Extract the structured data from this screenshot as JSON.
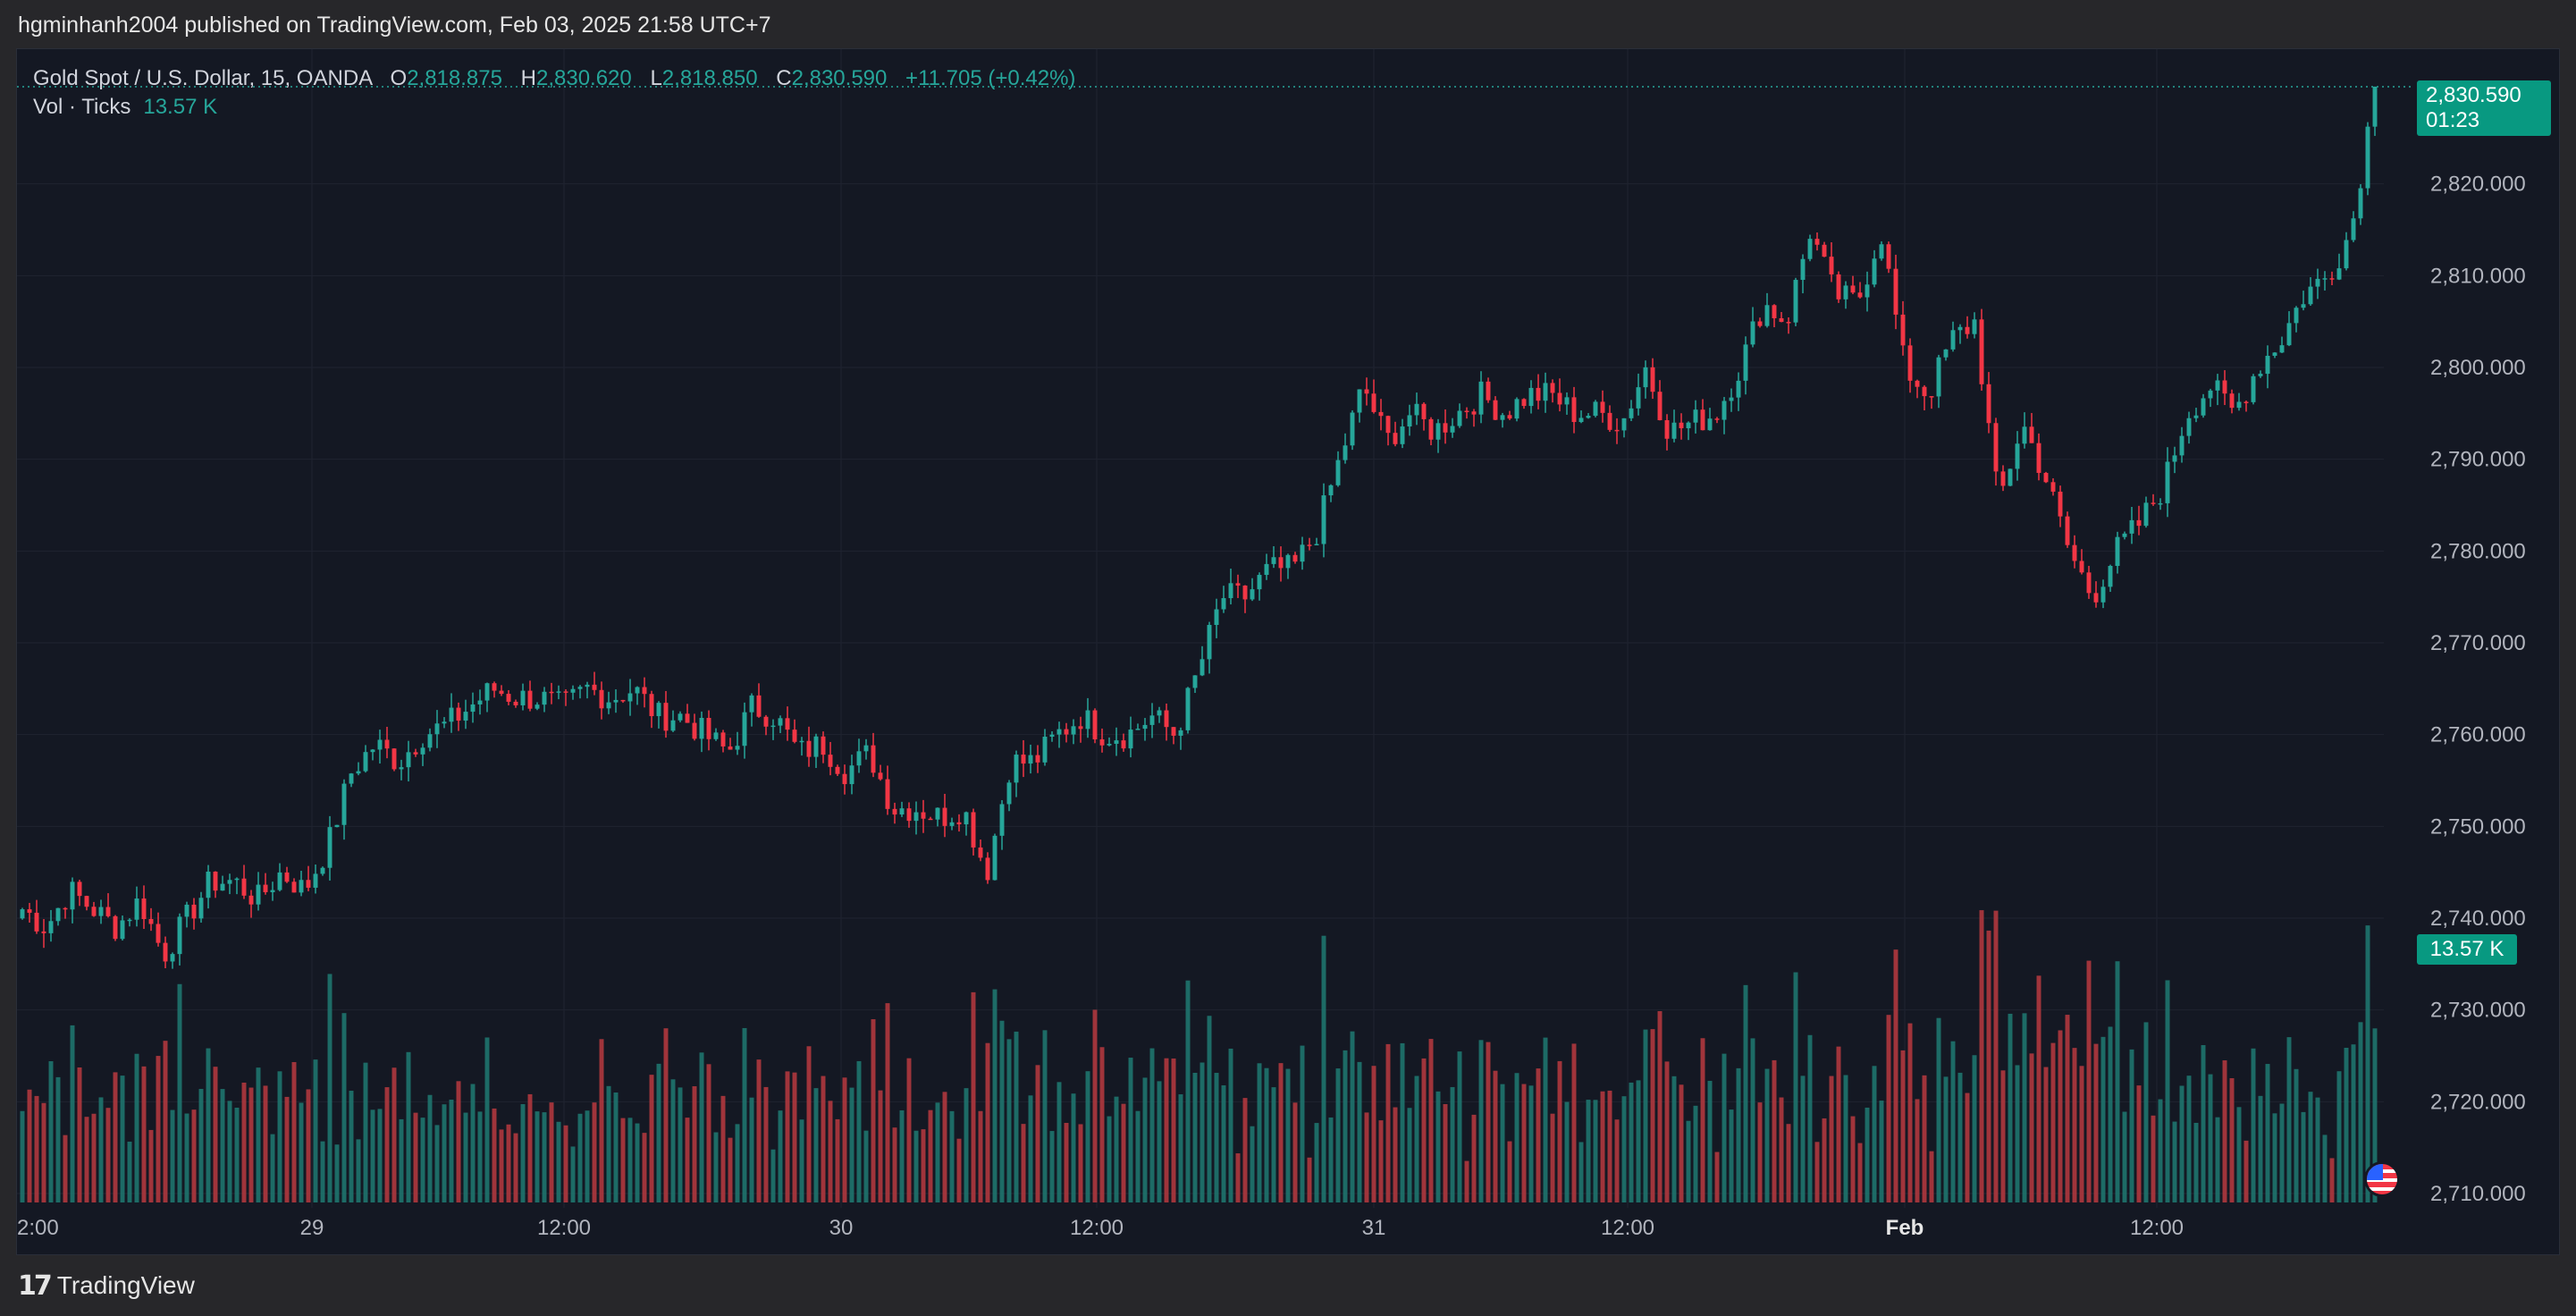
{
  "header": {
    "publisher_line": "hgminhanh2004 published on TradingView.com, Feb 03, 2025 21:58 UTC+7"
  },
  "legend": {
    "symbol": "Gold Spot / U.S. Dollar, 15, OANDA",
    "open_label": "O",
    "open": "2,818.875",
    "high_label": "H",
    "high": "2,830.620",
    "low_label": "L",
    "low": "2,818.850",
    "close_label": "C",
    "close": "2,830.590",
    "change": "+11.705 (+0.42%)",
    "volume_label": "Vol · Ticks",
    "volume_value": "13.57 K"
  },
  "price_tag": {
    "price": "2,830.590",
    "countdown": "01:23"
  },
  "volume_tag": {
    "value": "13.57 K"
  },
  "footer": {
    "brand_icon": "17",
    "brand_name": "TradingView"
  },
  "colors": {
    "up": "#26a69a",
    "down": "#f23645",
    "up_volume": "#1f7a72",
    "down_volume": "#b83a40",
    "grid": "#1f2330",
    "background": "#141823"
  },
  "icons": {
    "us-flag": "us-flag-icon",
    "tradingview-logo": "tradingview-logo-icon"
  },
  "chart_data": {
    "type": "candlestick",
    "interval": "15",
    "source": "OANDA",
    "price_axis": {
      "min": 2710,
      "max": 2830,
      "ticks": [
        "2,710.000",
        "2,720.000",
        "2,730.000",
        "2,740.000",
        "2,750.000",
        "2,760.000",
        "2,770.000",
        "2,780.000",
        "2,790.000",
        "2,800.000",
        "2,810.000",
        "2,820.000"
      ]
    },
    "time_axis": {
      "labels": [
        {
          "text": "2:00",
          "bold": false
        },
        {
          "text": "29",
          "bold": false
        },
        {
          "text": "12:00",
          "bold": false
        },
        {
          "text": "30",
          "bold": false
        },
        {
          "text": "12:00",
          "bold": false
        },
        {
          "text": "31",
          "bold": false
        },
        {
          "text": "12:00",
          "bold": false
        },
        {
          "text": "Feb",
          "bold": true
        },
        {
          "text": "12:00",
          "bold": false
        }
      ]
    },
    "last_price": 2830.59,
    "price_anchors": [
      2741,
      2739,
      2743,
      2741,
      2739,
      2742,
      2736,
      2740,
      2744,
      2744,
      2742,
      2745,
      2743,
      2748,
      2756,
      2759,
      2757,
      2760,
      2761,
      2763,
      2765,
      2764,
      2764,
      2763,
      2765,
      2764,
      2765,
      2762,
      2762,
      2760,
      2758,
      2763,
      2762,
      2758,
      2759,
      2756,
      2758,
      2752,
      2752,
      2751,
      2752,
      2745,
      2757,
      2757,
      2760,
      2762,
      2760,
      2760,
      2762,
      2760,
      2767,
      2775,
      2775,
      2778,
      2778,
      2782,
      2790,
      2798,
      2792,
      2795,
      2793,
      2795,
      2797,
      2795,
      2797,
      2797,
      2795,
      2795,
      2794,
      2800,
      2793,
      2794,
      2795,
      2800,
      2807,
      2805,
      2815,
      2808,
      2807,
      2815,
      2800,
      2797,
      2803,
      2805,
      2785,
      2794,
      2788,
      2780,
      2775,
      2780,
      2783,
      2787,
      2795,
      2798,
      2795,
      2800,
      2803,
      2808,
      2810,
      2815,
      2830.59
    ],
    "volume_axis_max_ticks": 23000,
    "volume_last": 13570
  }
}
